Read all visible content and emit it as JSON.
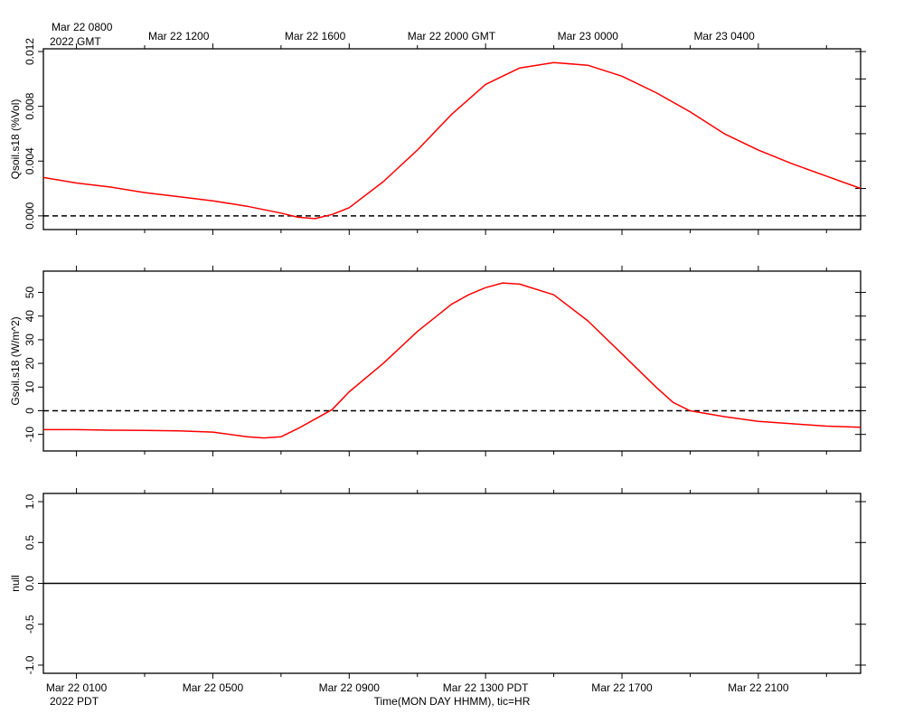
{
  "top_axis": {
    "first_label": "Mar 22 0800",
    "year_label": "2022 GMT",
    "tick_labels": [
      {
        "hour": 4,
        "label": "Mar 22 1200"
      },
      {
        "hour": 8,
        "label": "Mar 22 1600"
      },
      {
        "hour": 12,
        "label": "Mar 22 2000 GMT"
      },
      {
        "hour": 16,
        "label": "Mar 23 0000"
      },
      {
        "hour": 20,
        "label": "Mar 23 0400"
      }
    ]
  },
  "bottom_axis": {
    "year_label": "2022 PDT",
    "xlabel": "Time(MON DAY HHMM), tic=HR",
    "tick_labels": [
      {
        "hour": 1,
        "label": "Mar 22 0100"
      },
      {
        "hour": 5,
        "label": "Mar 22 0500"
      },
      {
        "hour": 9,
        "label": "Mar 22 0900"
      },
      {
        "hour": 13,
        "label": "Mar 22 1300 PDT"
      },
      {
        "hour": 17,
        "label": "Mar 22 1700"
      },
      {
        "hour": 21,
        "label": "Mar 22 2100"
      }
    ]
  },
  "colors": {
    "series": "#ff0000",
    "reference": "#000000"
  },
  "chart_data": [
    {
      "type": "line",
      "ylabel": "Qsoil.s18 (%Vol)",
      "xlim": [
        0.03,
        24
      ],
      "ylim": [
        -0.001,
        0.0122
      ],
      "yticks": [
        {
          "v": 0.0,
          "label": "0.000"
        },
        {
          "v": 0.004,
          "label": "0.004"
        },
        {
          "v": 0.008,
          "label": "0.008"
        },
        {
          "v": 0.012,
          "label": "0.012"
        }
      ],
      "minor_yticks": [
        0.002,
        0.006,
        0.01
      ],
      "reference_line": 0,
      "series": [
        {
          "x": [
            0.03,
            1,
            2,
            3,
            4,
            5,
            6,
            7,
            7.5,
            8,
            8.5,
            9,
            10,
            11,
            12,
            13,
            14,
            15,
            16,
            17,
            18,
            19,
            20,
            21,
            22,
            23,
            24
          ],
          "y": [
            0.0028,
            0.0024,
            0.0021,
            0.0017,
            0.0014,
            0.0011,
            0.0007,
            0.0002,
            -0.0001,
            -0.0002,
            0.0001,
            0.0006,
            0.0025,
            0.0048,
            0.0074,
            0.0096,
            0.0108,
            0.0112,
            0.011,
            0.0102,
            0.009,
            0.0076,
            0.006,
            0.0048,
            0.0038,
            0.0029,
            0.002
          ]
        }
      ]
    },
    {
      "type": "line",
      "ylabel": "Gsoil.s18 (W/m^2)",
      "xlim": [
        0.03,
        24
      ],
      "ylim": [
        -17,
        59
      ],
      "yticks": [
        {
          "v": -10,
          "label": "-10"
        },
        {
          "v": 0,
          "label": "0"
        },
        {
          "v": 10,
          "label": "10"
        },
        {
          "v": 20,
          "label": "20"
        },
        {
          "v": 30,
          "label": "30"
        },
        {
          "v": 40,
          "label": "40"
        },
        {
          "v": 50,
          "label": "50"
        }
      ],
      "minor_yticks": [],
      "reference_line": 0,
      "series": [
        {
          "x": [
            0.03,
            1,
            2,
            3,
            4,
            5,
            6,
            6.5,
            7,
            7.5,
            8,
            8.5,
            9,
            10,
            11,
            12,
            12.5,
            13,
            13.5,
            14,
            15,
            16,
            17,
            18,
            18.5,
            19,
            20,
            21,
            22,
            23,
            24
          ],
          "y": [
            -8,
            -8,
            -8.2,
            -8.3,
            -8.5,
            -9,
            -11,
            -11.5,
            -11,
            -7.5,
            -3.5,
            0.5,
            8,
            20,
            33.5,
            45,
            49,
            52,
            54,
            53.5,
            49,
            38,
            24,
            10,
            3.5,
            0,
            -2.5,
            -4.5,
            -5.5,
            -6.5,
            -7
          ]
        }
      ]
    },
    {
      "type": "line",
      "ylabel": "null",
      "xlim": [
        0.03,
        24
      ],
      "ylim": [
        -1.1,
        1.1
      ],
      "yticks": [
        {
          "v": -1,
          "label": "-1.0"
        },
        {
          "v": -0.5,
          "label": "-0.5"
        },
        {
          "v": 0,
          "label": "0.0"
        },
        {
          "v": 0.5,
          "label": "0.5"
        },
        {
          "v": 1,
          "label": "1.0"
        }
      ],
      "minor_yticks": [],
      "reference_line": 0,
      "series": []
    }
  ]
}
